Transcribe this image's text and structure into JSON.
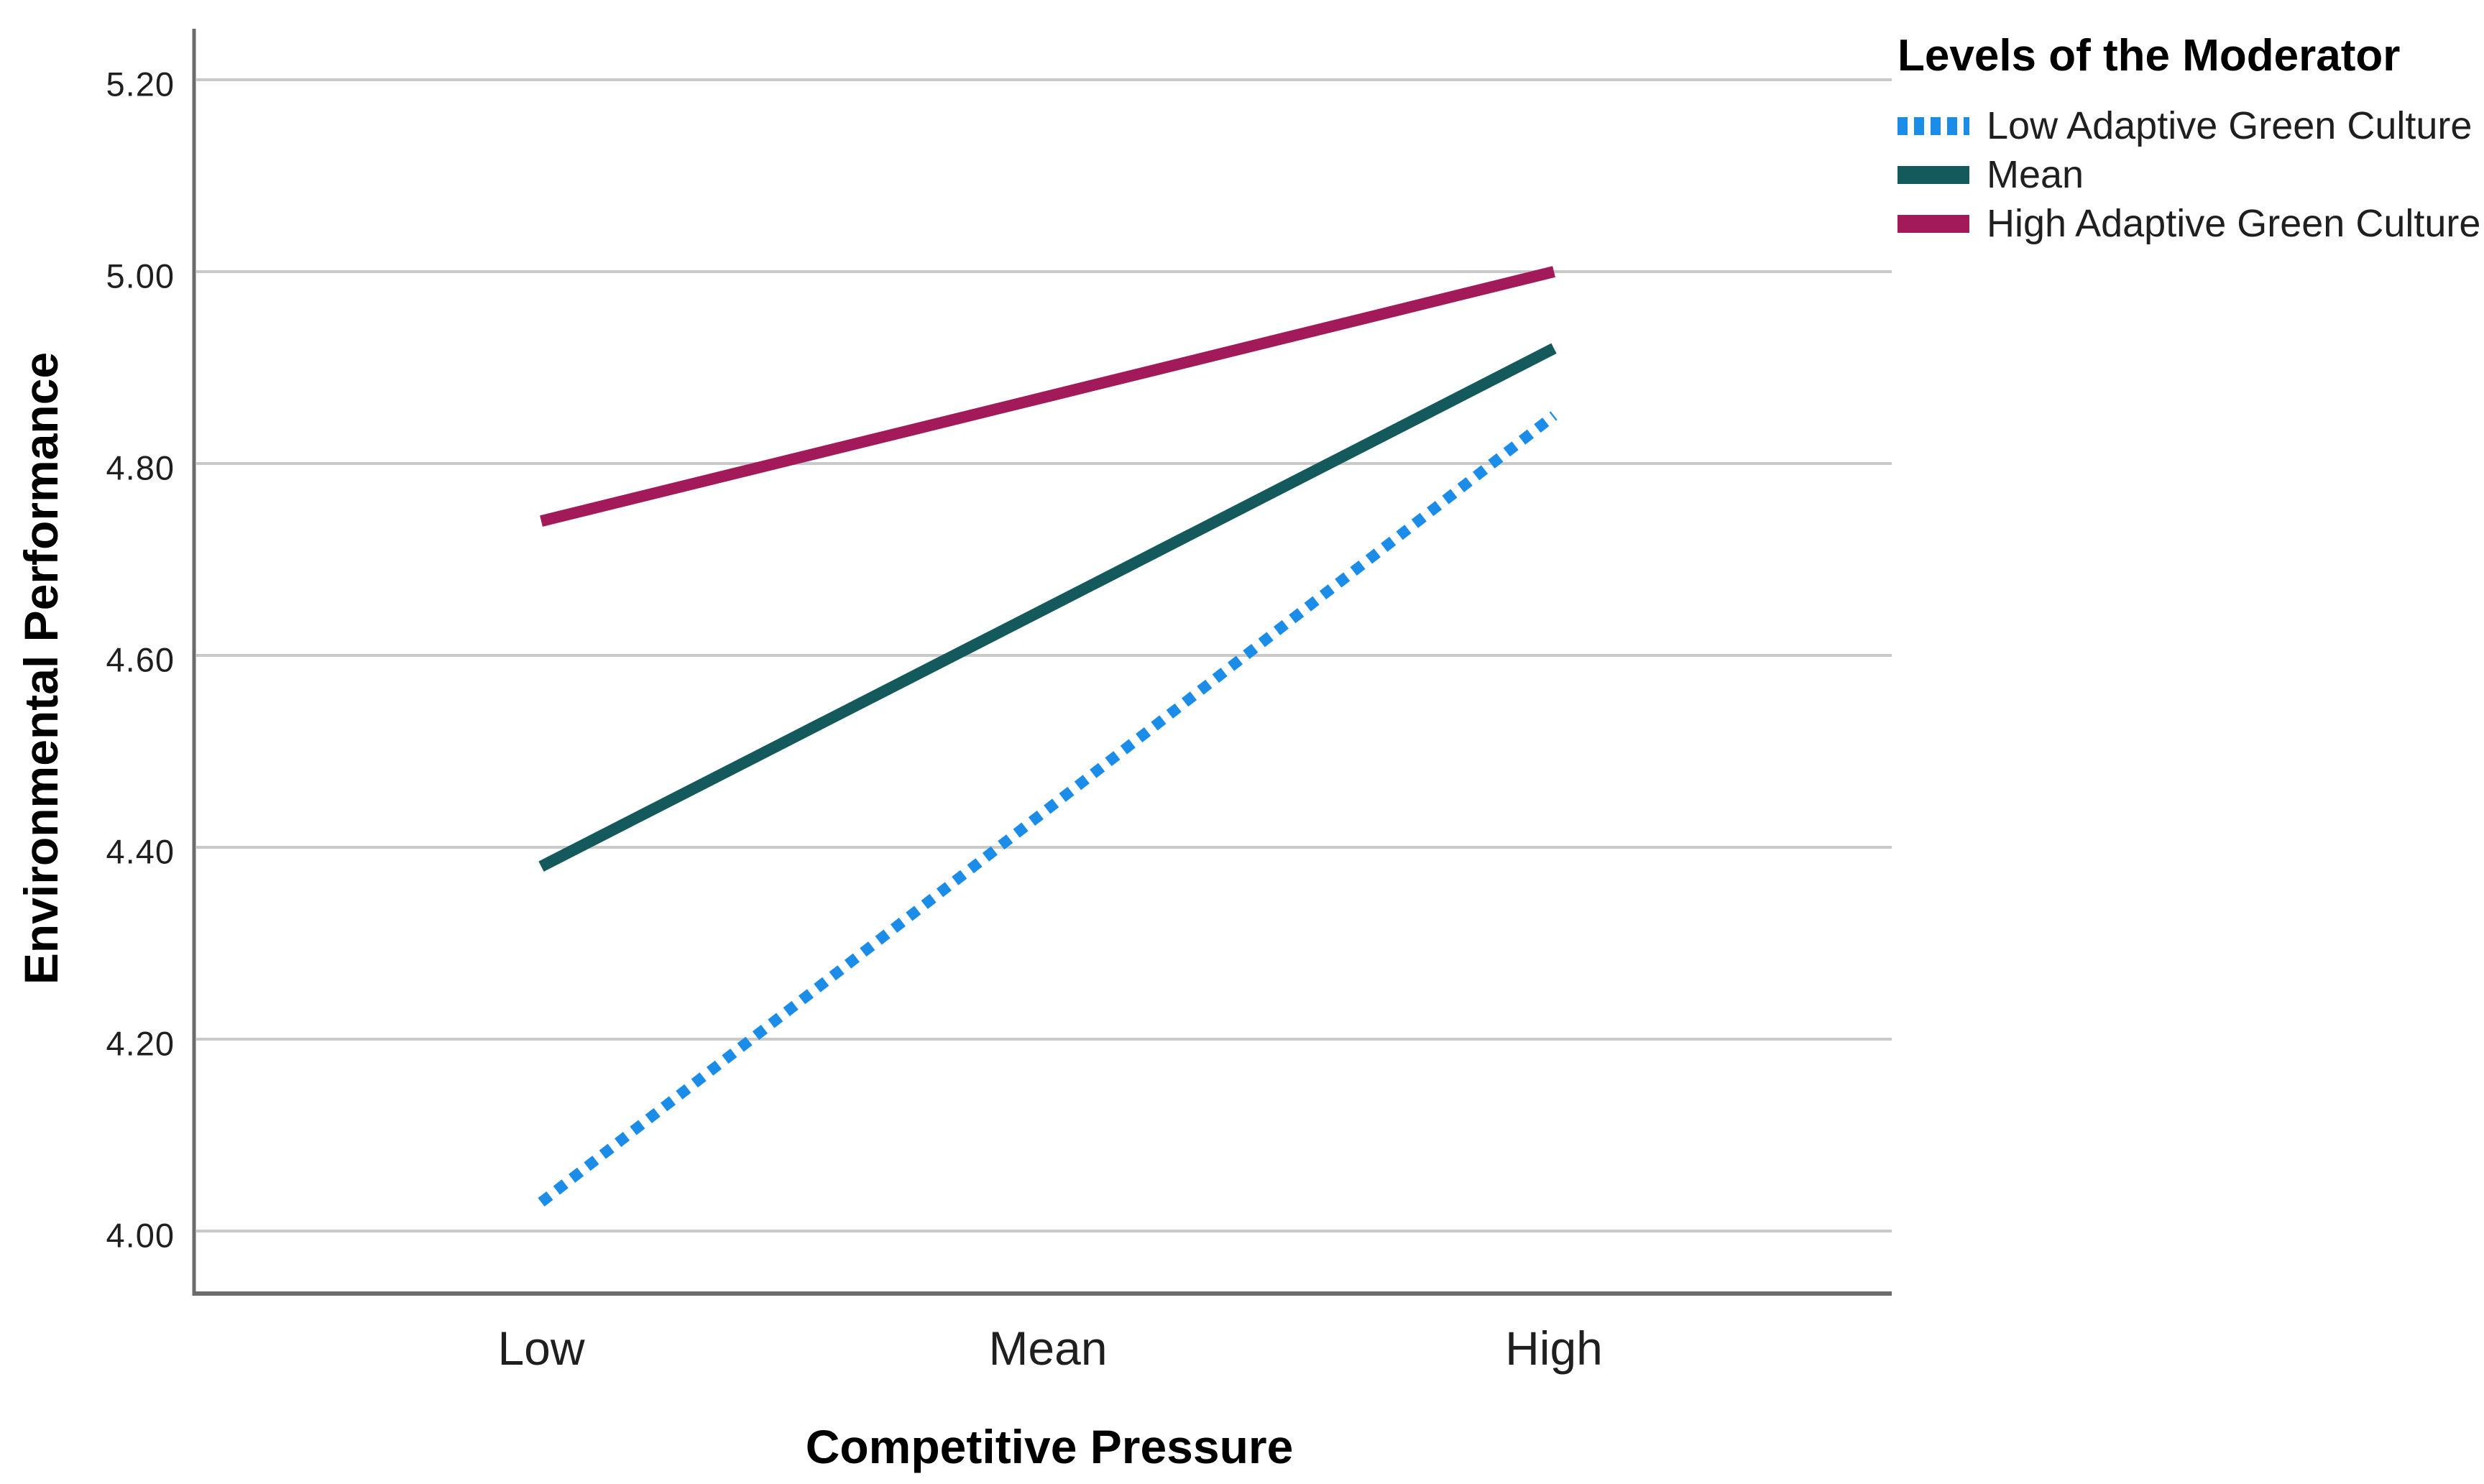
{
  "page": {
    "background": "#ffffff"
  },
  "chart_data": {
    "type": "line",
    "title": "",
    "xlabel": "Competitive Pressure",
    "ylabel": "Environmental Performance",
    "categories": [
      "Low",
      "Mean",
      "High"
    ],
    "y_ticks": [
      "5.20",
      "5.00",
      "4.80",
      "4.60",
      "4.40",
      "4.20",
      "4.00"
    ],
    "y_tick_values": [
      5.2,
      5.0,
      4.8,
      4.6,
      4.4,
      4.2,
      4.0
    ],
    "ylim": [
      3.94,
      5.23
    ],
    "grid": "horizontal-only",
    "legend": {
      "title": "Levels of the Moderator",
      "position": "top-right"
    },
    "series": [
      {
        "name": "Low Adaptive Green Culture",
        "color": "#1b8ce8",
        "line_style": "dotted",
        "values": [
          4.03,
          4.44,
          4.85
        ]
      },
      {
        "name": "Mean",
        "color": "#14595c",
        "line_style": "solid",
        "values": [
          4.38,
          4.65,
          4.92
        ]
      },
      {
        "name": "High Adaptive Green Culture",
        "color": "#a31a5b",
        "line_style": "solid",
        "values": [
          4.74,
          4.87,
          5.0
        ]
      }
    ],
    "axis_color": "#6b6b6b",
    "gridline_color": "#c9c9c9"
  }
}
